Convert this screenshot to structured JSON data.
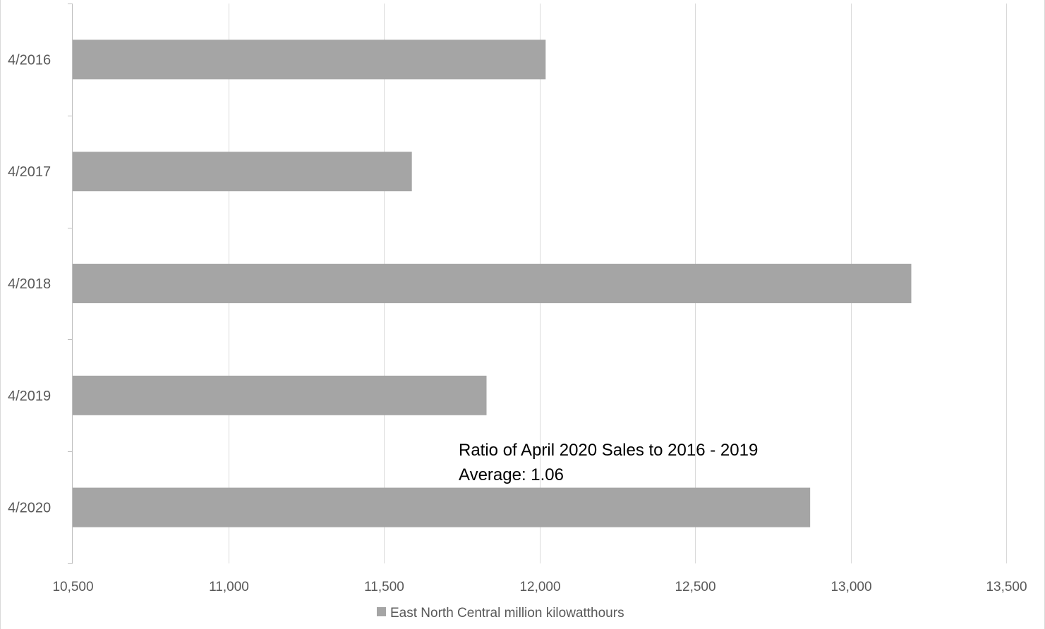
{
  "chart_data": {
    "type": "bar",
    "orientation": "horizontal",
    "categories": [
      "4/2016",
      "4/2017",
      "4/2018",
      "4/2019",
      "4/2020"
    ],
    "series": [
      {
        "name": "East North Central million kilowatthours",
        "values": [
          12020,
          11590,
          13195,
          11830,
          12870
        ],
        "color": "#a5a5a5"
      }
    ],
    "xlim": [
      10500,
      13500
    ],
    "x_ticks": [
      10500,
      11000,
      11500,
      12000,
      12500,
      13000,
      13500
    ],
    "x_tick_labels": [
      "10,500",
      "11,000",
      "11,500",
      "12,000",
      "12,500",
      "13,000",
      "13,500"
    ],
    "grid": true,
    "legend_position": "bottom",
    "annotation": {
      "lines": [
        "Ratio of April 2020 Sales to 2016 - 2019",
        "Average: 1.06"
      ]
    }
  },
  "colors": {
    "bar": "#a5a5a5",
    "grid": "#d9d9d9",
    "axis": "#bfbfbf",
    "text": "#595959"
  }
}
